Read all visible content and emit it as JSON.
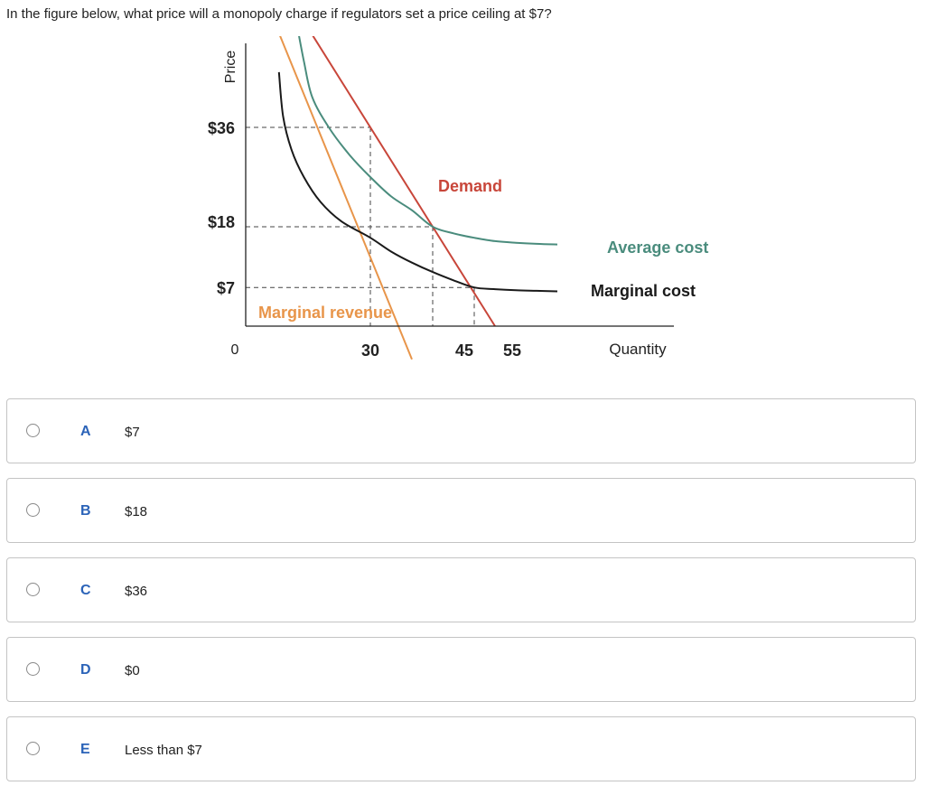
{
  "question": "In the figure below, what price will a monopoly charge if regulators set a price ceiling at $7?",
  "chart_data": {
    "type": "line",
    "xlabel": "Quantity",
    "ylabel": "Price",
    "origin_label": "0",
    "x_ticks": [
      "30",
      "45",
      "55"
    ],
    "y_ticks": [
      "$36",
      "$18",
      "$7"
    ],
    "reference_points": [
      {
        "x": 30,
        "y": 36
      },
      {
        "x": 45,
        "y": 18
      },
      {
        "x": 55,
        "y": 7
      }
    ],
    "series": [
      {
        "name": "Demand",
        "color": "#c8463a",
        "x": [
          15,
          60
        ],
        "y": [
          54,
          0
        ]
      },
      {
        "name": "Marginal revenue",
        "color": "#e8954a",
        "x": [
          7.5,
          40
        ],
        "y": [
          54,
          -6
        ]
      },
      {
        "name": "Average cost",
        "color": "#4a8c7d",
        "x": [
          12,
          14,
          16,
          20,
          25,
          30,
          35,
          40,
          45,
          50,
          55,
          60,
          65,
          70,
          75
        ],
        "y": [
          56,
          48,
          41.5,
          36,
          31,
          27,
          23.5,
          21,
          18,
          16.8,
          16,
          15.4,
          15.1,
          14.9,
          14.8
        ]
      },
      {
        "name": "Marginal cost",
        "color": "#1a1a1a",
        "x": [
          8,
          9,
          11,
          14,
          18,
          23,
          30,
          35,
          40,
          45,
          50,
          55,
          60,
          65,
          70,
          75
        ],
        "y": [
          46,
          38,
          32,
          27,
          22.5,
          19,
          16,
          13.5,
          11.5,
          9.8,
          8.3,
          7,
          6.7,
          6.5,
          6.4,
          6.3
        ]
      }
    ]
  },
  "options": [
    {
      "letter": "A",
      "text": "$7"
    },
    {
      "letter": "B",
      "text": "$18"
    },
    {
      "letter": "C",
      "text": "$36"
    },
    {
      "letter": "D",
      "text": "$0"
    },
    {
      "letter": "E",
      "text": "Less than $7"
    }
  ]
}
